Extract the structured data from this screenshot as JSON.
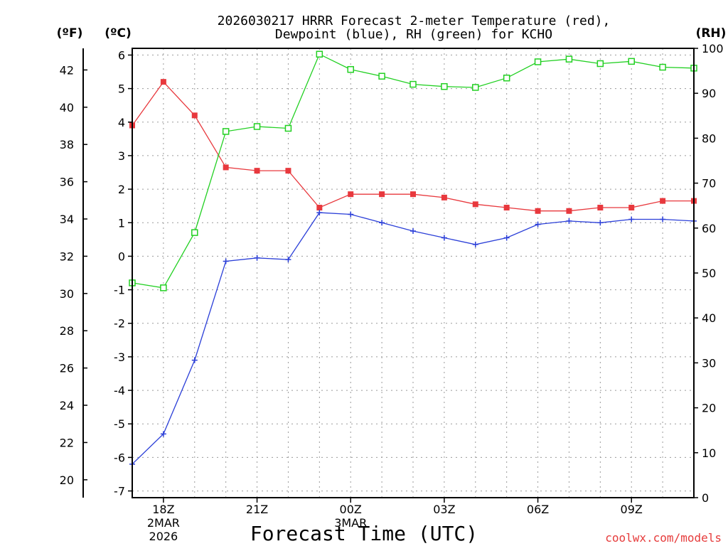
{
  "chart_data": {
    "type": "line",
    "title_line1": "2026030217 HRRR Forecast 2-meter Temperature (red),",
    "title_line2": "Dewpoint (blue), RH (green) for KCHO",
    "unit_labels": {
      "fahrenheit": "(ºF)",
      "celsius": "(ºC)",
      "rh": "(RH)"
    },
    "xlabel": "Forecast Time (UTC)",
    "credit": "coolwx.com/models",
    "x_hours": [
      17,
      18,
      19,
      20,
      21,
      22,
      23,
      24,
      25,
      26,
      27,
      28,
      29,
      30,
      31,
      32,
      33,
      34,
      35
    ],
    "x_range": [
      17,
      35
    ],
    "x_ticks": [
      {
        "hour": 18,
        "label": "18Z",
        "sub1": "2MAR",
        "sub2": "2026"
      },
      {
        "hour": 21,
        "label": "21Z"
      },
      {
        "hour": 24,
        "label": "00Z",
        "sub1": "3MAR"
      },
      {
        "hour": 27,
        "label": "03Z"
      },
      {
        "hour": 30,
        "label": "06Z"
      },
      {
        "hour": 33,
        "label": "09Z"
      }
    ],
    "celsius_range": [
      -7.2,
      6.2
    ],
    "celsius_ticks": [
      "-7",
      "-6",
      "-5",
      "-4",
      "-3",
      "-2",
      "-1",
      "0",
      "1",
      "2",
      "3",
      "4",
      "5",
      "6"
    ],
    "fahrenheit_ticks": [
      "20",
      "22",
      "24",
      "26",
      "28",
      "30",
      "32",
      "34",
      "36",
      "38",
      "40",
      "42"
    ],
    "rh_range": [
      0,
      100
    ],
    "rh_ticks": [
      "0",
      "10",
      "20",
      "30",
      "40",
      "50",
      "60",
      "70",
      "80",
      "90",
      "100"
    ],
    "series": [
      {
        "name": "Temperature",
        "unit": "C",
        "color": "#e8383d",
        "marker": "filled-square",
        "values": [
          3.9,
          5.2,
          4.2,
          2.65,
          2.55,
          2.55,
          1.45,
          1.85,
          1.85,
          1.85,
          1.75,
          1.55,
          1.45,
          1.35,
          1.35,
          1.45,
          1.45,
          1.65,
          1.65
        ]
      },
      {
        "name": "Dewpoint",
        "unit": "C",
        "color": "#2b3fd8",
        "marker": "plus",
        "values": [
          -6.2,
          -5.3,
          -3.1,
          -0.15,
          -0.05,
          -0.1,
          1.3,
          1.25,
          1.0,
          0.75,
          0.55,
          0.35,
          0.55,
          0.95,
          1.05,
          1.0,
          1.1,
          1.1,
          1.05
        ]
      },
      {
        "name": "RH",
        "unit": "%",
        "color": "#22d022",
        "marker": "open-square",
        "values": [
          47.8,
          46.7,
          59.0,
          81.5,
          82.6,
          82.2,
          98.7,
          95.3,
          93.8,
          92.0,
          91.5,
          91.3,
          93.4,
          97.0,
          97.6,
          96.6,
          97.1,
          95.8,
          95.6
        ]
      }
    ]
  }
}
